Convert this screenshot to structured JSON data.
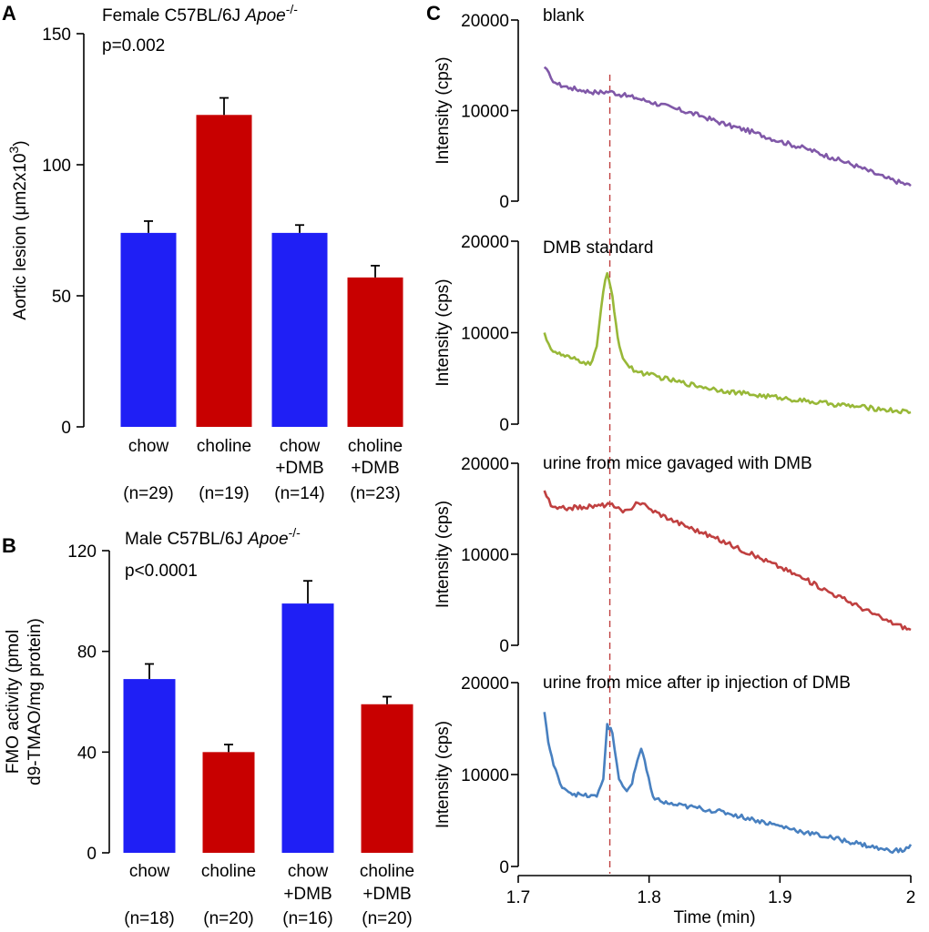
{
  "colors": {
    "blue": "#1f1ff5",
    "red": "#c80000",
    "purple": "#8058a8",
    "green": "#98b838",
    "trace_red": "#c04040",
    "trace_blue": "#4880c0",
    "marker": "#c04040"
  },
  "chart_data": [
    {
      "id": "A",
      "panel_label": "A",
      "type": "bar",
      "title_prefix": "Female C57BL/6J ",
      "title_gene": "Apoe",
      "title_sup": "-/-",
      "pvalue": "p=0.002",
      "ylabel_prefix": "Aortic lesion (",
      "ylabel_mu": "μ",
      "ylabel_mid": "m2x10",
      "ylabel_sup": "3",
      "ylabel_suffix": ")",
      "ylim": [
        0,
        150
      ],
      "yticks": [
        0,
        50,
        100,
        150
      ],
      "categories": [
        {
          "line1": "chow",
          "line2": "",
          "n": "(n=29)"
        },
        {
          "line1": "choline",
          "line2": "",
          "n": "(n=19)"
        },
        {
          "line1": "chow",
          "line2": "+DMB",
          "n": "(n=14)"
        },
        {
          "line1": "choline",
          "line2": "+DMB",
          "n": "(n=23)"
        }
      ],
      "values": [
        74,
        119,
        74,
        57
      ],
      "errors": [
        4.5,
        6.5,
        3,
        4.5
      ],
      "bar_colors": [
        "blue",
        "red",
        "blue",
        "red"
      ]
    },
    {
      "id": "B",
      "panel_label": "B",
      "type": "bar",
      "title_prefix": "Male C57BL/6J ",
      "title_gene": "Apoe",
      "title_sup": "-/-",
      "pvalue": "p<0.0001",
      "ylabel_line1": "FMO activity (pmol",
      "ylabel_line2": "d9-TMAO/mg protein)",
      "ylim": [
        0,
        120
      ],
      "yticks": [
        0,
        40,
        80,
        120
      ],
      "categories": [
        {
          "line1": "chow",
          "line2": "",
          "n": "(n=18)"
        },
        {
          "line1": "choline",
          "line2": "",
          "n": "(n=20)"
        },
        {
          "line1": "chow",
          "line2": "+DMB",
          "n": "(n=16)"
        },
        {
          "line1": "choline",
          "line2": "+DMB",
          "n": "(n=20)"
        }
      ],
      "values": [
        69,
        40,
        99,
        59
      ],
      "errors": [
        6,
        3,
        9,
        3
      ],
      "bar_colors": [
        "blue",
        "red",
        "blue",
        "red"
      ]
    },
    {
      "id": "C",
      "panel_label": "C",
      "type": "line",
      "xlabel": "Time (min)",
      "ylabel": "Intensity (cps)",
      "xlim": [
        1.7,
        2.0
      ],
      "xticks": [
        1.7,
        1.8,
        1.9,
        2.0
      ],
      "xtick_labels": [
        "1.7",
        "1.8",
        "1.9",
        "2"
      ],
      "ylim": [
        0,
        20000
      ],
      "yticks": [
        0,
        10000,
        20000
      ],
      "marker_x": 1.77,
      "series": [
        {
          "name": "blank",
          "color": "purple",
          "points": [
            [
              1.72,
              14800
            ],
            [
              1.725,
              13600
            ],
            [
              1.73,
              12900
            ],
            [
              1.74,
              12500
            ],
            [
              1.75,
              12200
            ],
            [
              1.76,
              12000
            ],
            [
              1.77,
              12100
            ],
            [
              1.78,
              11700
            ],
            [
              1.79,
              11400
            ],
            [
              1.8,
              11000
            ],
            [
              1.82,
              10200
            ],
            [
              1.84,
              9400
            ],
            [
              1.86,
              8400
            ],
            [
              1.88,
              7600
            ],
            [
              1.9,
              6600
            ],
            [
              1.92,
              5800
            ],
            [
              1.94,
              4800
            ],
            [
              1.96,
              3800
            ],
            [
              1.98,
              2600
            ],
            [
              2.0,
              1700
            ]
          ]
        },
        {
          "name": "DMB standard",
          "color": "green",
          "points": [
            [
              1.72,
              10000
            ],
            [
              1.725,
              8200
            ],
            [
              1.73,
              7700
            ],
            [
              1.74,
              7200
            ],
            [
              1.75,
              6800
            ],
            [
              1.755,
              6500
            ],
            [
              1.76,
              8500
            ],
            [
              1.765,
              14500
            ],
            [
              1.768,
              16500
            ],
            [
              1.772,
              14000
            ],
            [
              1.776,
              9500
            ],
            [
              1.78,
              7200
            ],
            [
              1.785,
              6200
            ],
            [
              1.79,
              5800
            ],
            [
              1.8,
              5400
            ],
            [
              1.82,
              4700
            ],
            [
              1.84,
              4100
            ],
            [
              1.86,
              3600
            ],
            [
              1.88,
              3200
            ],
            [
              1.9,
              2900
            ],
            [
              1.92,
              2500
            ],
            [
              1.94,
              2200
            ],
            [
              1.96,
              1900
            ],
            [
              1.98,
              1600
            ],
            [
              2.0,
              1300
            ]
          ]
        },
        {
          "name": "urine from mice gavaged with DMB",
          "color": "trace_red",
          "points": [
            [
              1.72,
              17000
            ],
            [
              1.725,
              15300
            ],
            [
              1.73,
              15000
            ],
            [
              1.74,
              15100
            ],
            [
              1.75,
              15200
            ],
            [
              1.76,
              15300
            ],
            [
              1.77,
              15500
            ],
            [
              1.775,
              15100
            ],
            [
              1.78,
              14600
            ],
            [
              1.785,
              14900
            ],
            [
              1.79,
              15700
            ],
            [
              1.795,
              15600
            ],
            [
              1.8,
              15000
            ],
            [
              1.82,
              13600
            ],
            [
              1.84,
              12400
            ],
            [
              1.86,
              11200
            ],
            [
              1.88,
              9900
            ],
            [
              1.9,
              8600
            ],
            [
              1.92,
              7200
            ],
            [
              1.94,
              5700
            ],
            [
              1.96,
              4300
            ],
            [
              1.98,
              2800
            ],
            [
              2.0,
              1700
            ]
          ]
        },
        {
          "name": "urine from mice after ip injection of DMB",
          "color": "trace_blue",
          "points": [
            [
              1.72,
              16800
            ],
            [
              1.723,
              13500
            ],
            [
              1.727,
              11000
            ],
            [
              1.732,
              9000
            ],
            [
              1.74,
              8000
            ],
            [
              1.75,
              7700
            ],
            [
              1.76,
              7600
            ],
            [
              1.765,
              9500
            ],
            [
              1.768,
              15500
            ],
            [
              1.772,
              14500
            ],
            [
              1.777,
              9500
            ],
            [
              1.783,
              8200
            ],
            [
              1.787,
              9000
            ],
            [
              1.791,
              11500
            ],
            [
              1.794,
              12800
            ],
            [
              1.798,
              10500
            ],
            [
              1.803,
              7600
            ],
            [
              1.81,
              7000
            ],
            [
              1.82,
              6700
            ],
            [
              1.84,
              6300
            ],
            [
              1.86,
              5800
            ],
            [
              1.88,
              5100
            ],
            [
              1.9,
              4400
            ],
            [
              1.92,
              3700
            ],
            [
              1.94,
              3100
            ],
            [
              1.96,
              2500
            ],
            [
              1.98,
              1800
            ],
            [
              1.995,
              1700
            ],
            [
              2.0,
              2400
            ]
          ]
        }
      ]
    }
  ]
}
